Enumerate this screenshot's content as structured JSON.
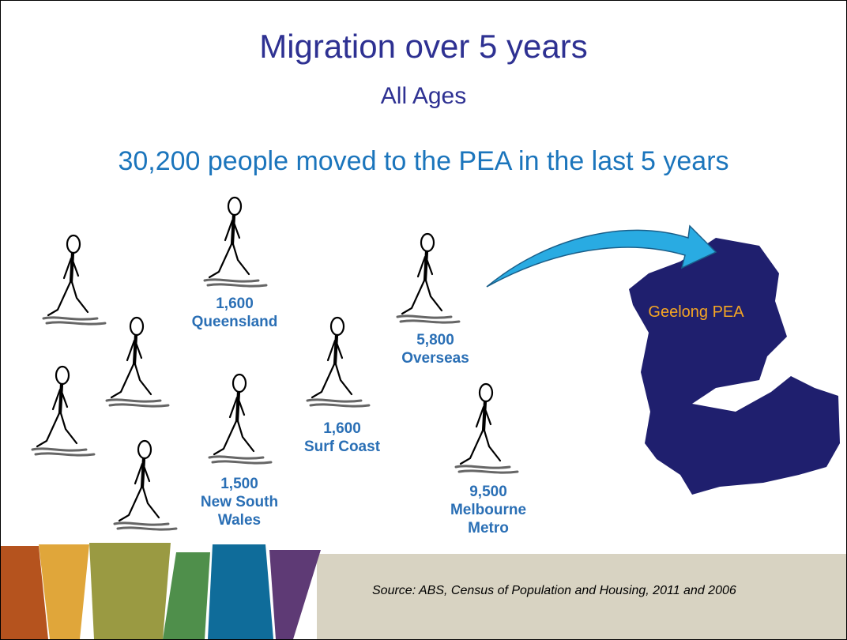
{
  "title": "Migration over 5 years",
  "subtitle": "All Ages",
  "headline": "30,200 people moved to the PEA in the last 5 years",
  "groups": [
    {
      "value": "1,600",
      "region": "Queensland"
    },
    {
      "value": "5,800",
      "region": "Overseas"
    },
    {
      "value": "1,600",
      "region": "Surf Coast"
    },
    {
      "value": "1,500",
      "region": "New South Wales"
    },
    {
      "value": "9,500",
      "region": "Melbourne Metro"
    }
  ],
  "map_label": "Geelong PEA",
  "source": "Source: ABS, Census of Population and Housing, 2011 and 2006"
}
